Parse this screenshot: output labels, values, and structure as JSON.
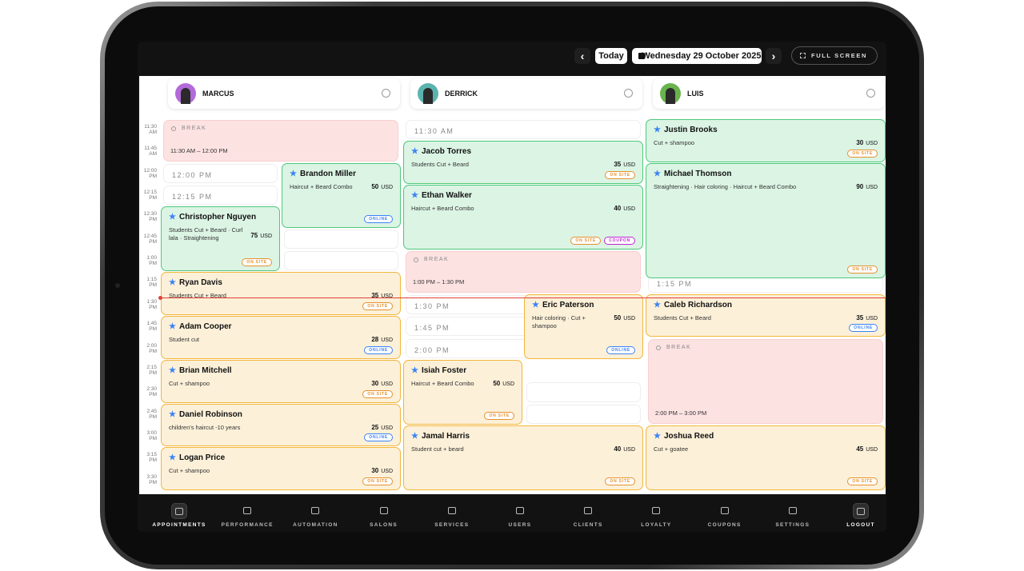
{
  "toolbar": {
    "prev": "‹",
    "today": "Today",
    "date": "Wednesday 29 October 2025",
    "next": "›",
    "full_screen": "FULL SCREEN"
  },
  "time_slots": [
    {
      "time": "11:30",
      "period": "AM"
    },
    {
      "time": "11:45",
      "period": "AM"
    },
    {
      "time": "12:00",
      "period": "PM"
    },
    {
      "time": "12:15",
      "period": "PM"
    },
    {
      "time": "12:30",
      "period": "PM"
    },
    {
      "time": "12:45",
      "period": "PM"
    },
    {
      "time": "1:00",
      "period": "PM"
    },
    {
      "time": "1:15",
      "period": "PM"
    },
    {
      "time": "1:30",
      "period": "PM"
    },
    {
      "time": "1:45",
      "period": "PM"
    },
    {
      "time": "2:00",
      "period": "PM"
    },
    {
      "time": "2:15",
      "period": "PM"
    },
    {
      "time": "2:30",
      "period": "PM"
    },
    {
      "time": "2:45",
      "period": "PM"
    },
    {
      "time": "3:00",
      "period": "PM"
    },
    {
      "time": "3:15",
      "period": "PM"
    },
    {
      "time": "3:30",
      "period": "PM"
    }
  ],
  "staff": [
    {
      "name": "MARCUS",
      "events": [
        {
          "label": "BREAK",
          "time": "11:30 AM – 12:00 PM"
        },
        {
          "label": "12:00 PM"
        },
        {
          "label": "12:15 PM"
        },
        {
          "client": "Brandon Miller",
          "services": "Haircut + Beard Combo",
          "price": 50,
          "currency": "USD",
          "color": "#4cc97a",
          "tags": [
            {
              "label": "ONLINE",
              "color": "#3b82f6"
            }
          ]
        },
        {
          "client": "Christopher Nguyen",
          "services": "Students Cut + Beard · Curl lala · Straightening",
          "price": 75,
          "currency": "USD",
          "color": "#4cc97a",
          "tags": [
            {
              "label": "ON SITE",
              "color": "#e5912d"
            }
          ]
        },
        {
          "client": "Ryan Davis",
          "services": "Students Cut + Beard",
          "price": 35,
          "currency": "USD",
          "color": "#f2b63c",
          "tags": [
            {
              "label": "ON SITE",
              "color": "#e5912d"
            }
          ]
        },
        {
          "client": "Adam Cooper",
          "services": "Student cut",
          "price": 28,
          "currency": "USD",
          "color": "#f2b63c",
          "tags": [
            {
              "label": "ONLINE",
              "color": "#3b82f6"
            }
          ]
        },
        {
          "client": "Brian Mitchell",
          "services": "Cut + shampoo",
          "price": 30,
          "currency": "USD",
          "color": "#f2b63c",
          "tags": [
            {
              "label": "ON SITE",
              "color": "#e5912d"
            }
          ]
        },
        {
          "client": "Daniel Robinson",
          "services": "children's haircut -10 years",
          "price": 25,
          "currency": "USD",
          "color": "#f2b63c",
          "tags": [
            {
              "label": "ONLINE",
              "color": "#3b82f6"
            }
          ]
        },
        {
          "client": "Logan Price",
          "services": "Cut + shampoo",
          "price": 30,
          "currency": "USD",
          "color": "#f2b63c",
          "tags": [
            {
              "label": "ON SITE",
              "color": "#e5912d"
            }
          ]
        }
      ]
    },
    {
      "name": "DERRICK",
      "events": [
        {
          "label": "11:30 AM"
        },
        {
          "client": "Jacob Torres",
          "services": "Students Cut + Beard",
          "price": 35,
          "currency": "USD",
          "color": "#4cc97a",
          "tags": [
            {
              "label": "ON SITE",
              "color": "#e5912d"
            }
          ]
        },
        {
          "client": "Ethan Walker",
          "services": "Haircut + Beard Combo",
          "price": 40,
          "currency": "USD",
          "color": "#4cc97a",
          "tags": [
            {
              "label": "ON SITE",
              "color": "#e5912d"
            },
            {
              "label": "COUPON",
              "color": "#c026d3"
            }
          ]
        },
        {
          "label": "BREAK",
          "time": "1:00 PM – 1:30 PM"
        },
        {
          "label": "1:30 PM"
        },
        {
          "label": "1:45 PM"
        },
        {
          "label": "2:00 PM"
        },
        {
          "client": "Eric Paterson",
          "services": "Hair coloring · Cut + shampoo",
          "price": 50,
          "currency": "USD",
          "color": "#f2b63c",
          "tags": [
            {
              "label": "ONLINE",
              "color": "#3b82f6"
            }
          ]
        },
        {
          "client": "Isiah Foster",
          "services": "Haircut + Beard Combo",
          "price": 50,
          "currency": "USD",
          "color": "#f2b63c",
          "tags": [
            {
              "label": "ON SITE",
              "color": "#e5912d"
            }
          ]
        },
        {
          "client": "Jamal Harris",
          "services": "Student cut + beard",
          "price": 40,
          "currency": "USD",
          "color": "#f2b63c",
          "tags": [
            {
              "label": "ON SITE",
              "color": "#e5912d"
            }
          ]
        }
      ]
    },
    {
      "name": "LUIS",
      "events": [
        {
          "client": "Justin Brooks",
          "services": "Cut + shampoo",
          "price": 30,
          "currency": "USD",
          "color": "#4cc97a",
          "tags": [
            {
              "label": "ON SITE",
              "color": "#e5912d"
            }
          ]
        },
        {
          "client": "Michael Thomson",
          "services": "Straightening · Hair coloring · Haircut + Beard Combo",
          "price": 90,
          "currency": "USD",
          "color": "#4cc97a",
          "tags": [
            {
              "label": "ON SITE",
              "color": "#e5912d"
            }
          ]
        },
        {
          "label": "1:15 PM"
        },
        {
          "client": "Caleb Richardson",
          "services": "Students Cut + Beard",
          "price": 35,
          "currency": "USD",
          "color": "#f2b63c",
          "tags": [
            {
              "label": "ONLINE",
              "color": "#3b82f6"
            }
          ]
        },
        {
          "label": "BREAK",
          "time": "2:00 PM – 3:00 PM"
        },
        {
          "client": "Joshua Reed",
          "services": "Cut + goatee",
          "price": 45,
          "currency": "USD",
          "color": "#f2b63c",
          "tags": [
            {
              "label": "ON SITE",
              "color": "#e5912d"
            }
          ]
        }
      ]
    }
  ],
  "nav": [
    "APPOINTMENTS",
    "PERFORMANCE",
    "AUTOMATION",
    "SALONS",
    "SERVICES",
    "USERS",
    "CLIENTS",
    "LOYALTY",
    "COUPONS",
    "SETTINGS",
    "LOGOUT"
  ]
}
